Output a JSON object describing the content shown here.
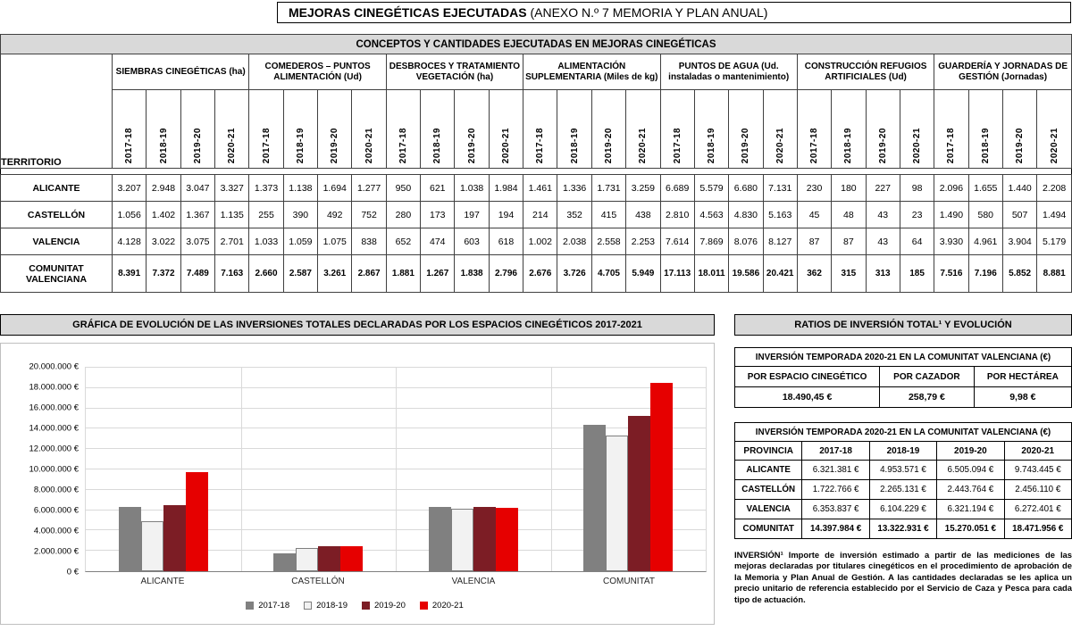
{
  "page_title": {
    "bold": "MEJORAS CINEGÉTICAS EJECUTADAS",
    "normal": " (ANEXO N.º 7 MEMORIA Y PLAN ANUAL)"
  },
  "main_table": {
    "title": "CONCEPTOS Y CANTIDADES EJECUTADAS EN MEJORAS CINEGÉTICAS",
    "territory_label": "TERRITORIO",
    "seasons": [
      "2017-18",
      "2018-19",
      "2019-20",
      "2020-21"
    ],
    "concepts": [
      "SIEMBRAS CINEGÉTICAS (ha)",
      "COMEDEROS – PUNTOS ALIMENTACIÓN (Ud)",
      "DESBROCES Y TRATAMIENTO VEGETACIÓN (ha)",
      "ALIMENTACIÓN SUPLEMENTARIA (Miles de kg)",
      "PUNTOS DE AGUA (Ud. instaladas o mantenimiento)",
      "CONSTRUCCIÓN REFUGIOS ARTIFICIALES (Ud)",
      "GUARDERÍA Y JORNADAS DE GESTIÓN (Jornadas)"
    ],
    "rows": [
      {
        "territory": "ALICANTE",
        "bold": false,
        "values": [
          "3.207",
          "2.948",
          "3.047",
          "3.327",
          "1.373",
          "1.138",
          "1.694",
          "1.277",
          "950",
          "621",
          "1.038",
          "1.984",
          "1.461",
          "1.336",
          "1.731",
          "3.259",
          "6.689",
          "5.579",
          "6.680",
          "7.131",
          "230",
          "180",
          "227",
          "98",
          "2.096",
          "1.655",
          "1.440",
          "2.208"
        ]
      },
      {
        "territory": "CASTELLÓN",
        "bold": false,
        "values": [
          "1.056",
          "1.402",
          "1.367",
          "1.135",
          "255",
          "390",
          "492",
          "752",
          "280",
          "173",
          "197",
          "194",
          "214",
          "352",
          "415",
          "438",
          "2.810",
          "4.563",
          "4.830",
          "5.163",
          "45",
          "48",
          "43",
          "23",
          "1.490",
          "580",
          "507",
          "1.494"
        ]
      },
      {
        "territory": "VALENCIA",
        "bold": false,
        "values": [
          "4.128",
          "3.022",
          "3.075",
          "2.701",
          "1.033",
          "1.059",
          "1.075",
          "838",
          "652",
          "474",
          "603",
          "618",
          "1.002",
          "2.038",
          "2.558",
          "2.253",
          "7.614",
          "7.869",
          "8.076",
          "8.127",
          "87",
          "87",
          "43",
          "64",
          "3.930",
          "4.961",
          "3.904",
          "5.179"
        ]
      },
      {
        "territory": "COMUNITAT VALENCIANA",
        "bold": true,
        "values": [
          "8.391",
          "7.372",
          "7.489",
          "7.163",
          "2.660",
          "2.587",
          "3.261",
          "2.867",
          "1.881",
          "1.267",
          "1.838",
          "2.796",
          "2.676",
          "3.726",
          "4.705",
          "5.949",
          "17.113",
          "18.011",
          "19.586",
          "20.421",
          "362",
          "315",
          "313",
          "185",
          "7.516",
          "7.196",
          "5.852",
          "8.881"
        ]
      }
    ]
  },
  "chart_data": {
    "type": "bar",
    "title": "GRÁFICA DE EVOLUCIÓN DE LAS INVERSIONES TOTALES DECLARADAS POR LOS ESPACIOS CINEGÉTICOS 2017-2021",
    "categories": [
      "ALICANTE",
      "CASTELLÓN",
      "VALENCIA",
      "COMUNITAT"
    ],
    "series": [
      {
        "name": "2017-18",
        "color": "#808080",
        "values": [
          6321381,
          1722766,
          6353837,
          14397984
        ]
      },
      {
        "name": "2018-19",
        "color": "#f2f2f2",
        "values": [
          4953571,
          2265131,
          6104229,
          13322931
        ]
      },
      {
        "name": "2019-20",
        "color": "#7c1d25",
        "values": [
          6505094,
          2443764,
          6321194,
          15270051
        ]
      },
      {
        "name": "2020-21",
        "color": "#e60000",
        "values": [
          9743445,
          2456110,
          6272401,
          18471956
        ]
      }
    ],
    "ylim": [
      0,
      20000000
    ],
    "ytick_step": 2000000,
    "ytick_labels": [
      "0 €",
      "2.000.000 €",
      "4.000.000 €",
      "6.000.000 €",
      "8.000.000 €",
      "10.000.000 €",
      "12.000.000 €",
      "14.000.000 €",
      "16.000.000 €",
      "18.000.000 €",
      "20.000.000 €"
    ],
    "legend_position": "bottom",
    "grid": true
  },
  "ratios": {
    "header": "RATIOS DE INVERSIÓN TOTAL¹ Y EVOLUCIÓN",
    "table1": {
      "title": "INVERSIÓN TEMPORADA 2020-21 EN LA COMUNITAT VALENCIANA (€)",
      "columns": [
        "POR ESPACIO CINEGÉTICO",
        "POR CAZADOR",
        "POR HECTÁREA"
      ],
      "values": [
        "18.490,45 €",
        "258,79 €",
        "9,98 €"
      ]
    },
    "table2": {
      "title": "INVERSIÓN TEMPORADA 2020-21 EN LA COMUNITAT VALENCIANA (€)",
      "columns": [
        "PROVINCIA",
        "2017-18",
        "2018-19",
        "2019-20",
        "2020-21"
      ],
      "rows": [
        {
          "provincia": "ALICANTE",
          "bold": false,
          "values": [
            "6.321.381 €",
            "4.953.571 €",
            "6.505.094 €",
            "9.743.445 €"
          ]
        },
        {
          "provincia": "CASTELLÓN",
          "bold": false,
          "values": [
            "1.722.766 €",
            "2.265.131 €",
            "2.443.764 €",
            "2.456.110 €"
          ]
        },
        {
          "provincia": "VALENCIA",
          "bold": false,
          "values": [
            "6.353.837 €",
            "6.104.229 €",
            "6.321.194 €",
            "6.272.401 €"
          ]
        },
        {
          "provincia": "COMUNITAT",
          "bold": true,
          "values": [
            "14.397.984 €",
            "13.322.931 €",
            "15.270.051 €",
            "18.471.956 €"
          ]
        }
      ]
    },
    "footnote": "INVERSIÓN¹ Importe de inversión estimado a partir de las mediciones de las mejoras declaradas por titulares cinegéticos en el procedimiento de aprobación de la Memoria y Plan Anual de Gestión. A las cantidades declaradas se les aplica un precio unitario de referencia establecido por el Servicio de Caza y Pesca para cada tipo de actuación."
  }
}
